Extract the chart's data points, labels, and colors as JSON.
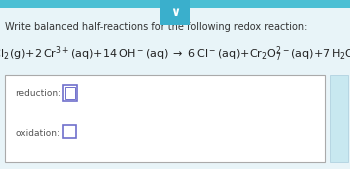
{
  "title": "Write balanced half-reactions for the following redox reaction:",
  "title_fontsize": 7.0,
  "title_color": "#333333",
  "bg_color": "#e8f4f8",
  "header_bar_color": "#4bbfd4",
  "chevron_box_color": "#3aafcc",
  "chevron_char": "∨",
  "box_bg": "#ffffff",
  "box_border": "#aaaaaa",
  "reduction_label": "reduction:",
  "oxidation_label": "oxidation:",
  "label_fontsize": 6.5,
  "label_color": "#555555",
  "input_box_color": "#7070cc",
  "scrollbar_color": "#c8e8f0",
  "scrollbar_border": "#aaccdd"
}
